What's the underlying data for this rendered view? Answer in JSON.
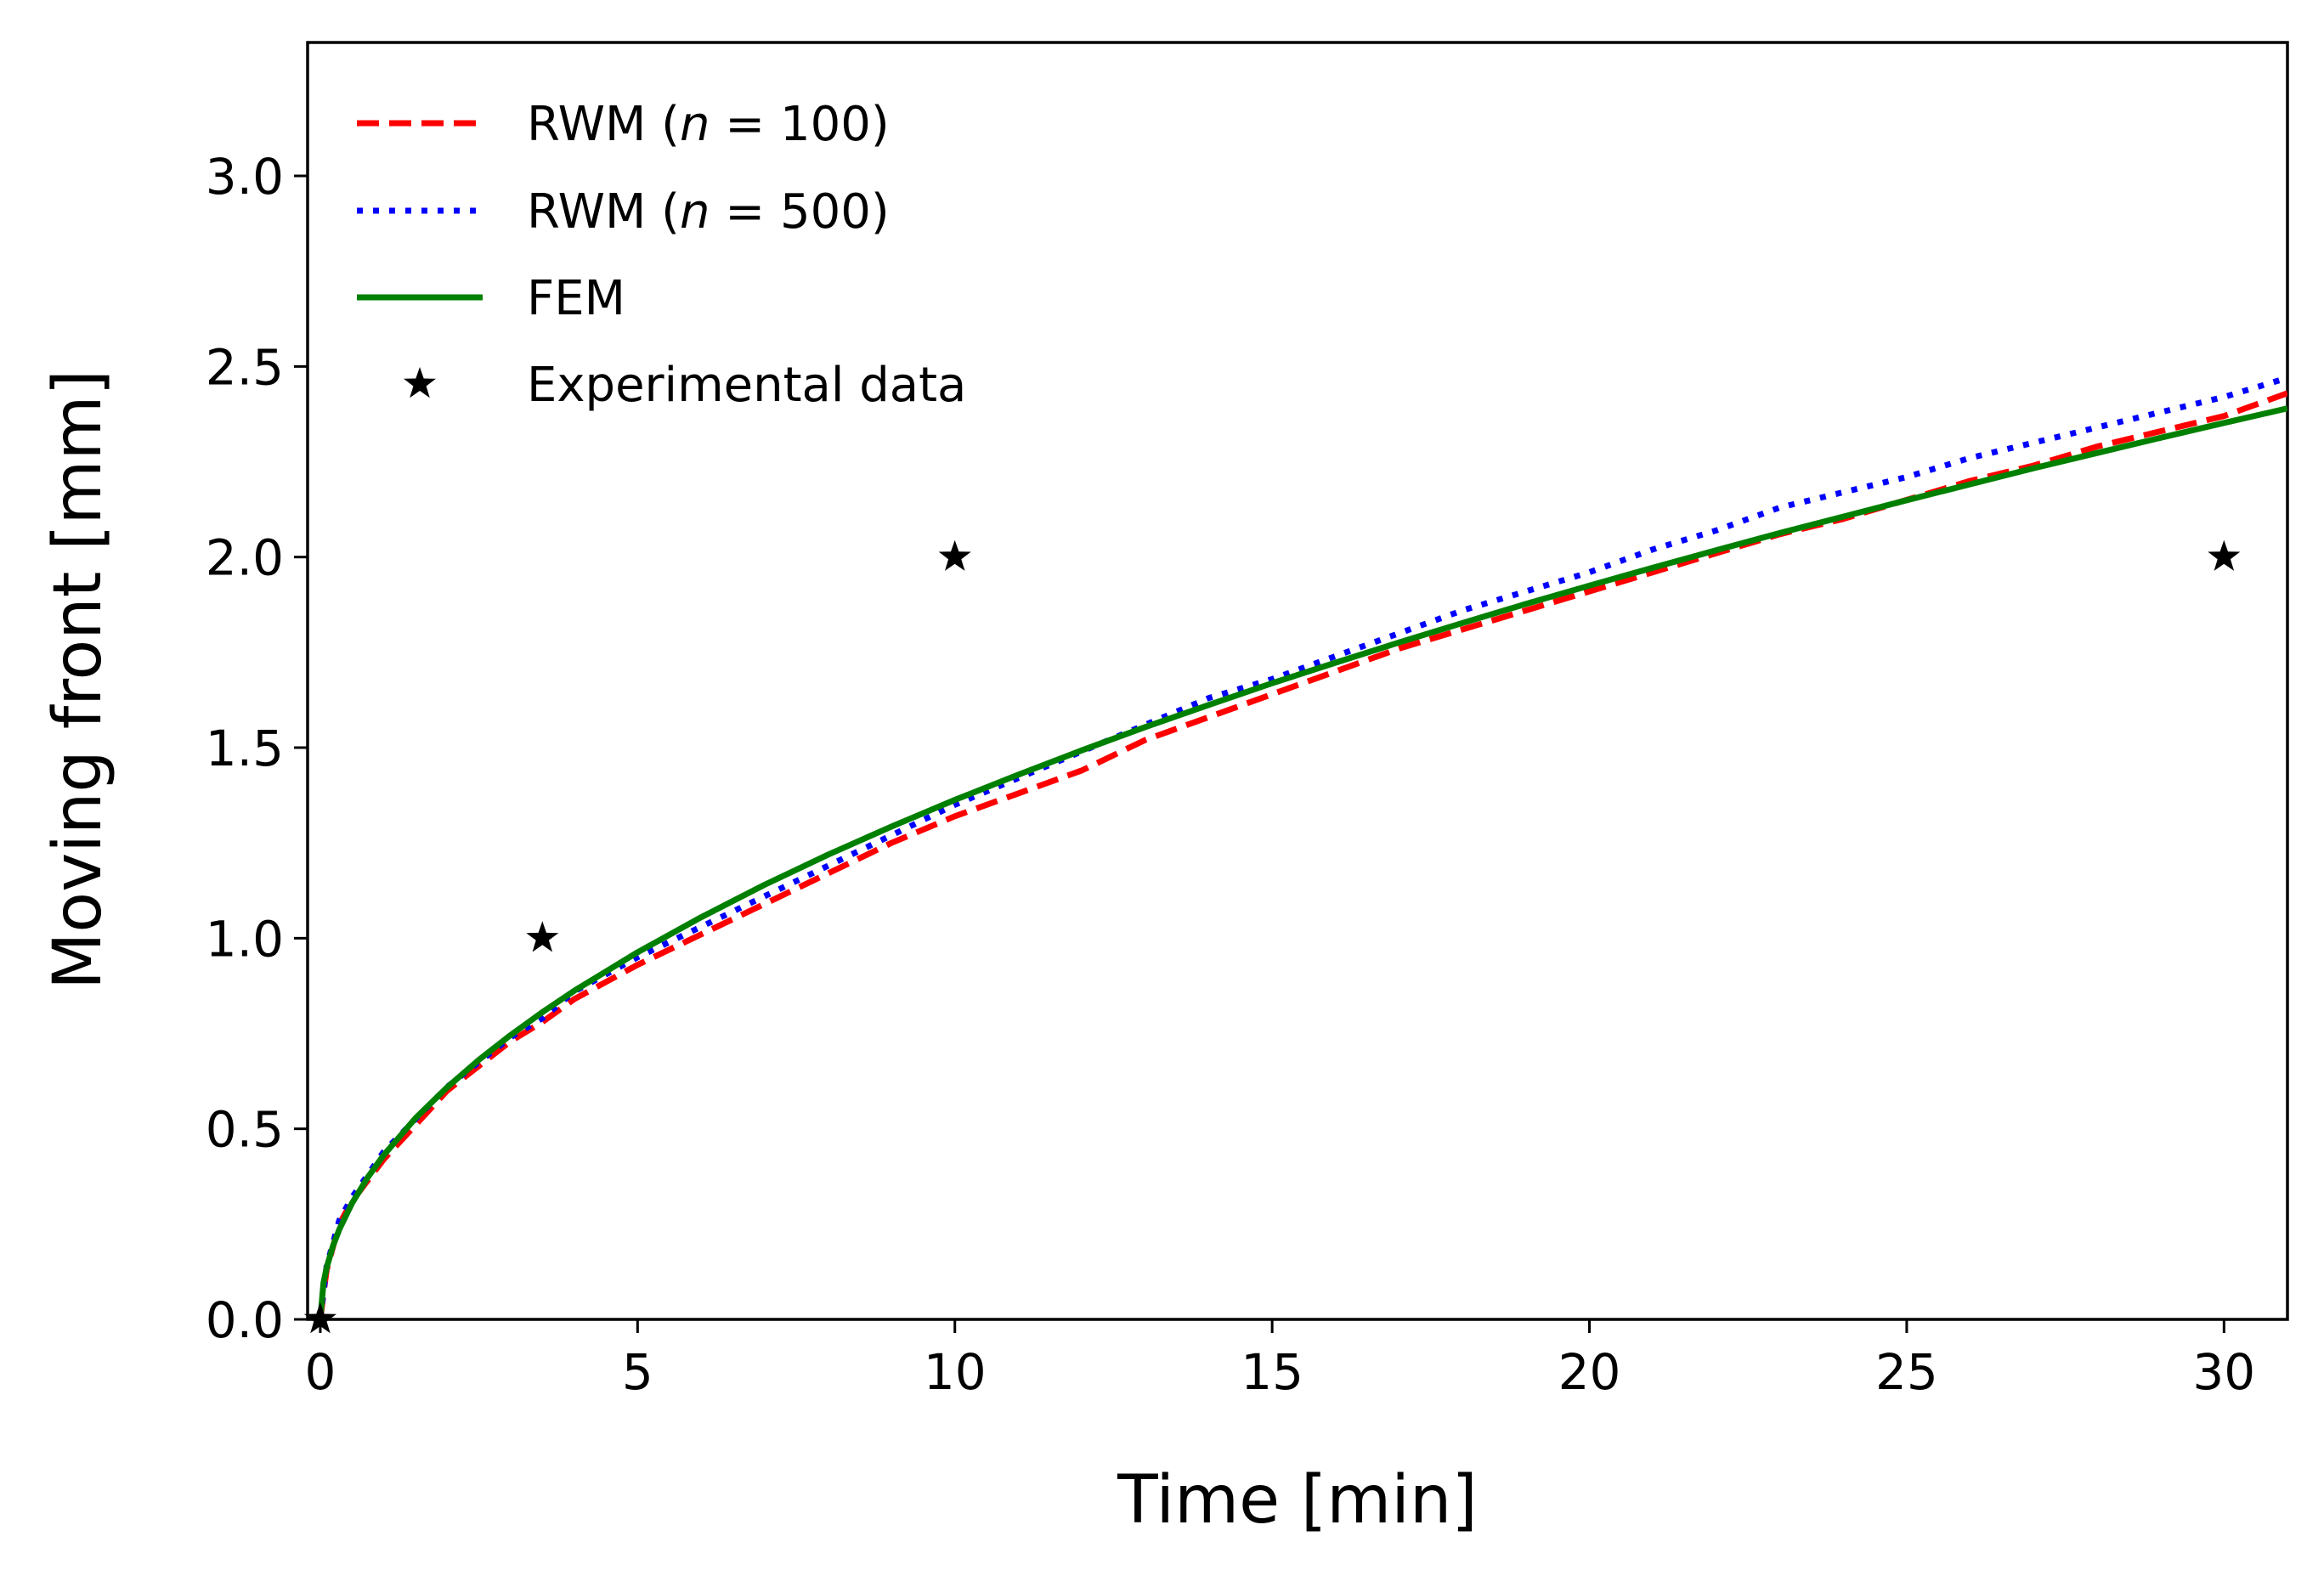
{
  "chart_data": {
    "type": "line",
    "title": "",
    "xlabel": "Time [min]",
    "ylabel": "Moving front [mm]",
    "xlim": [
      -0.2,
      31
    ],
    "ylim": [
      0,
      3.35
    ],
    "xticks": [
      0,
      5,
      10,
      15,
      20,
      25,
      30
    ],
    "xtick_labels": [
      "0",
      "5",
      "10",
      "15",
      "20",
      "25",
      "30"
    ],
    "yticks": [
      0.0,
      0.5,
      1.0,
      1.5,
      2.0,
      2.5,
      3.0
    ],
    "ytick_labels": [
      "0.0",
      "0.5",
      "1.0",
      "1.5",
      "2.0",
      "2.5",
      "3.0"
    ],
    "grid": false,
    "legend_position": "top-left",
    "series": [
      {
        "name": "RWM (n = 100)",
        "legend_prefix": "RWM (",
        "legend_var": "n",
        "legend_suffix": " = 100)",
        "color": "#ff0000",
        "style": "dashed",
        "x": [
          0,
          0.1,
          0.3,
          0.5,
          1,
          2,
          3,
          3.5,
          4,
          5,
          6,
          7,
          8,
          9,
          10,
          11,
          12,
          13,
          14,
          15,
          16,
          17,
          18,
          19,
          20,
          21,
          22,
          23,
          24,
          25,
          26,
          27,
          28,
          29,
          30,
          31
        ],
        "y": [
          0,
          0.13,
          0.25,
          0.31,
          0.42,
          0.6,
          0.73,
          0.78,
          0.84,
          0.93,
          1.01,
          1.09,
          1.17,
          1.25,
          1.32,
          1.38,
          1.44,
          1.52,
          1.58,
          1.64,
          1.7,
          1.76,
          1.81,
          1.86,
          1.91,
          1.96,
          2.01,
          2.06,
          2.1,
          2.15,
          2.2,
          2.24,
          2.29,
          2.33,
          2.37,
          2.43
        ]
      },
      {
        "name": "RWM (n = 500)",
        "legend_prefix": "RWM (",
        "legend_var": "n",
        "legend_suffix": " = 500)",
        "color": "#0000ff",
        "style": "dotted",
        "x": [
          0,
          0.1,
          0.3,
          0.5,
          1,
          2,
          3,
          3.5,
          4,
          5,
          6,
          7,
          8,
          9,
          10,
          11,
          12,
          13,
          14,
          15,
          16,
          17,
          18,
          19,
          20,
          21,
          22,
          23,
          24,
          25,
          26,
          27,
          28,
          29,
          30,
          31
        ],
        "y": [
          0,
          0.14,
          0.26,
          0.32,
          0.44,
          0.61,
          0.74,
          0.79,
          0.86,
          0.95,
          1.03,
          1.11,
          1.19,
          1.27,
          1.35,
          1.42,
          1.49,
          1.56,
          1.63,
          1.68,
          1.74,
          1.8,
          1.86,
          1.91,
          1.96,
          2.02,
          2.07,
          2.13,
          2.17,
          2.21,
          2.26,
          2.3,
          2.34,
          2.38,
          2.42,
          2.47
        ]
      },
      {
        "name": "FEM",
        "color": "#008000",
        "style": "solid",
        "x": [
          0,
          0.05,
          0.1,
          0.2,
          0.3,
          0.5,
          0.75,
          1,
          1.5,
          2,
          2.5,
          3,
          3.5,
          4,
          5,
          6,
          7,
          8,
          9,
          10,
          11,
          12,
          13,
          14,
          15,
          16,
          17,
          18,
          19,
          20,
          21,
          22,
          23,
          24,
          25,
          26,
          27,
          28,
          29,
          30,
          31
        ],
        "y": [
          0,
          0.096,
          0.136,
          0.193,
          0.236,
          0.305,
          0.373,
          0.431,
          0.528,
          0.609,
          0.681,
          0.746,
          0.806,
          0.862,
          0.963,
          1.055,
          1.14,
          1.219,
          1.293,
          1.363,
          1.429,
          1.493,
          1.554,
          1.612,
          1.669,
          1.723,
          1.776,
          1.827,
          1.877,
          1.925,
          1.972,
          2.018,
          2.063,
          2.106,
          2.149,
          2.191,
          2.233,
          2.273,
          2.313,
          2.352,
          2.39
        ]
      },
      {
        "name": "Experimental data",
        "color": "#000000",
        "style": "marker-star",
        "x": [
          0,
          3.5,
          10,
          30
        ],
        "y": [
          0,
          1.0,
          2.0,
          2.0
        ]
      }
    ]
  }
}
